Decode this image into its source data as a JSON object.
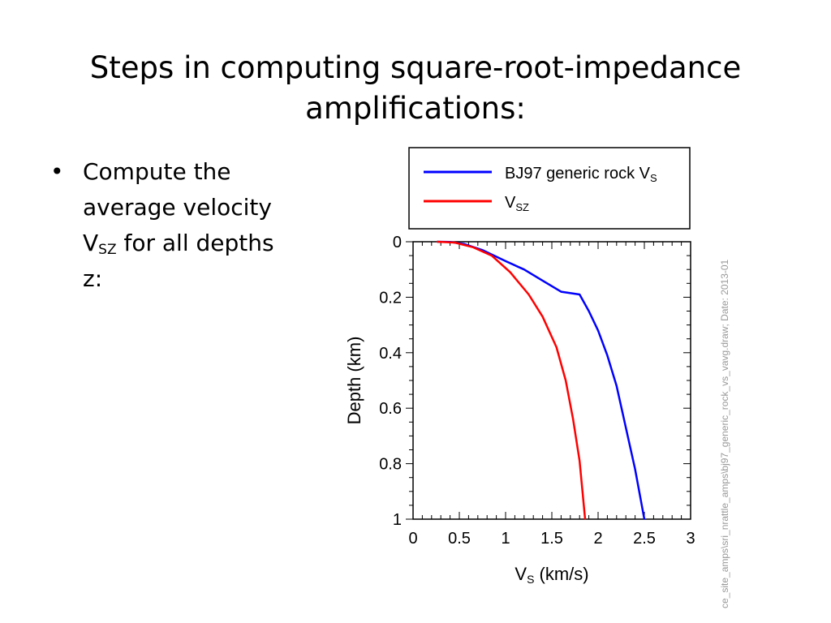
{
  "slide": {
    "title_line1": "Steps in computing square-root-impedance",
    "title_line2": "amplifications:",
    "bullet": {
      "symbol": "•",
      "line1": "Compute the",
      "line2": "average velocity",
      "v_main": "V",
      "v_sub": "SZ",
      "line3_rest": " for all depths",
      "line4": "z:"
    }
  },
  "chart_data": {
    "type": "line",
    "xlabel_main": "V",
    "xlabel_sub": "S",
    "xlabel_rest": " (km/s)",
    "ylabel": "Depth (km)",
    "xlim": [
      0,
      3
    ],
    "ylim": [
      1,
      0
    ],
    "x_ticks": [
      "0",
      "0.5",
      "1",
      "1.5",
      "2",
      "2.5",
      "3"
    ],
    "y_ticks": [
      "0",
      "0.2",
      "0.4",
      "0.6",
      "0.8",
      "1"
    ],
    "legend_placement": "above plot",
    "series": [
      {
        "name": "BJ97 generic rock V",
        "name_sub": "S",
        "color": "#0000ff",
        "points": [
          [
            0.26,
            0
          ],
          [
            0.4,
            0.001
          ],
          [
            0.55,
            0.008
          ],
          [
            0.75,
            0.03
          ],
          [
            1.0,
            0.07
          ],
          [
            1.2,
            0.1
          ],
          [
            1.4,
            0.14
          ],
          [
            1.6,
            0.18
          ],
          [
            1.8,
            0.19
          ],
          [
            1.9,
            0.25
          ],
          [
            2.0,
            0.32
          ],
          [
            2.1,
            0.41
          ],
          [
            2.2,
            0.52
          ],
          [
            2.3,
            0.67
          ],
          [
            2.4,
            0.82
          ],
          [
            2.5,
            1.0
          ]
        ]
      },
      {
        "name": "V",
        "name_sub": "SZ",
        "color": "#ff0000",
        "points": [
          [
            0.26,
            0
          ],
          [
            0.45,
            0.003
          ],
          [
            0.65,
            0.02
          ],
          [
            0.85,
            0.05
          ],
          [
            1.05,
            0.11
          ],
          [
            1.25,
            0.19
          ],
          [
            1.4,
            0.27
          ],
          [
            1.55,
            0.38
          ],
          [
            1.65,
            0.5
          ],
          [
            1.73,
            0.64
          ],
          [
            1.8,
            0.79
          ],
          [
            1.86,
            1.0
          ]
        ]
      }
    ],
    "side_text": "ce_site_amps\\sri_nrattle_amps\\bj97_generic_rock_vs_vavg.draw; Date: 2013-01"
  }
}
